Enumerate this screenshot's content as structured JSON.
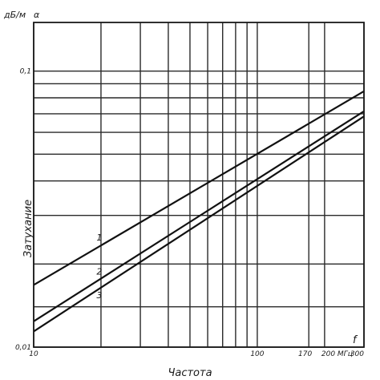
{
  "chart_data": {
    "type": "line",
    "x_scale": "log",
    "y_scale": "log",
    "xlim": [
      10,
      300
    ],
    "ylim": [
      0.01,
      0.15
    ],
    "grid": true,
    "y_unit": "дБ/м",
    "y_symbol": "α",
    "x_symbol": "f",
    "ylabel": "Затухание",
    "xlabel": "Частота",
    "x_ticks": [
      {
        "value": 10,
        "label": "10"
      },
      {
        "value": 100,
        "label": "100"
      },
      {
        "value": 170,
        "label": "170"
      },
      {
        "value": 200,
        "label": "200 МГц"
      },
      {
        "value": 300,
        "label": "300"
      }
    ],
    "y_ticks": [
      {
        "value": 0.01,
        "label": "0,01"
      },
      {
        "value": 0.1,
        "label": "0,1"
      }
    ],
    "x_grid": [
      10,
      20,
      30,
      40,
      50,
      60,
      70,
      80,
      90,
      100,
      170,
      200,
      300
    ],
    "y_grid": [
      0.01,
      0.014,
      0.02,
      0.03,
      0.04,
      0.05,
      0.06,
      0.07,
      0.08,
      0.09,
      0.1
    ],
    "series": [
      {
        "name": "1",
        "x": [
          10,
          300
        ],
        "y": [
          0.0168,
          0.0845
        ]
      },
      {
        "name": "2",
        "x": [
          10,
          300
        ],
        "y": [
          0.0124,
          0.0715
        ]
      },
      {
        "name": "3",
        "x": [
          10,
          300
        ],
        "y": [
          0.0114,
          0.0685
        ]
      }
    ]
  }
}
